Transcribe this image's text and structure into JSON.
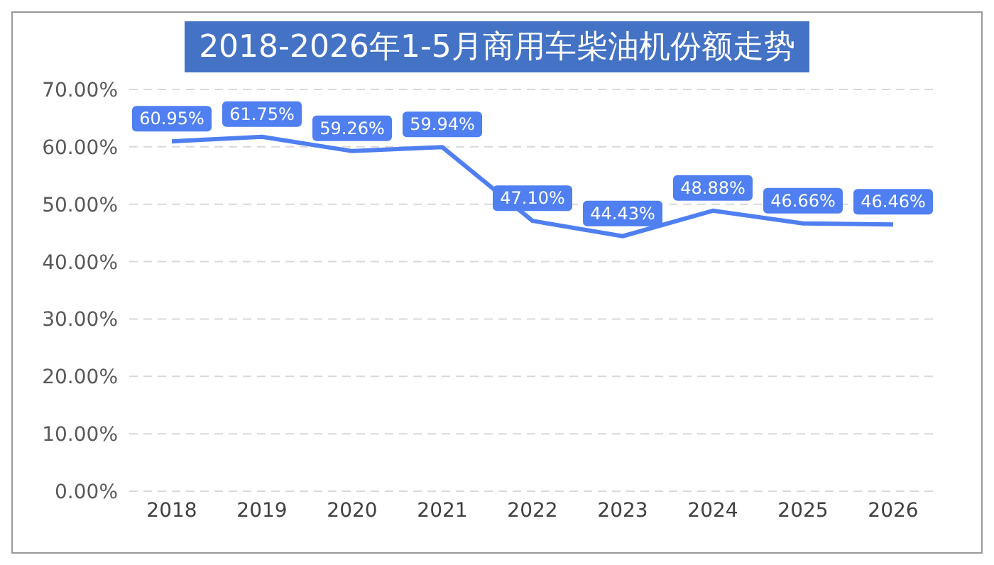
{
  "chart_data": {
    "type": "line",
    "title": "2018-2026年1-5月商用车柴油机份额走势",
    "categories": [
      "2018",
      "2019",
      "2020",
      "2021",
      "2022",
      "2023",
      "2024",
      "2025",
      "2026"
    ],
    "series": [
      {
        "color": "#4f7ff0",
        "values": [
          60.95,
          61.75,
          59.26,
          59.94,
          47.1,
          44.43,
          48.88,
          46.66,
          46.46
        ],
        "value_labels": [
          "60.95%",
          "61.75%",
          "59.26%",
          "59.94%",
          "47.10%",
          "44.43%",
          "48.88%",
          "46.66%",
          "46.46%"
        ]
      }
    ],
    "ylim": [
      0,
      70
    ],
    "yticks": [
      {
        "value": 0,
        "label": "0.00%"
      },
      {
        "value": 10,
        "label": "10.00%"
      },
      {
        "value": 20,
        "label": "20.00%"
      },
      {
        "value": 30,
        "label": "30.00%"
      },
      {
        "value": 40,
        "label": "40.00%"
      },
      {
        "value": 50,
        "label": "50.00%"
      },
      {
        "value": 60,
        "label": "60.00%"
      },
      {
        "value": 70,
        "label": "70.00%"
      }
    ],
    "grid": "y",
    "line_style": "solid"
  }
}
